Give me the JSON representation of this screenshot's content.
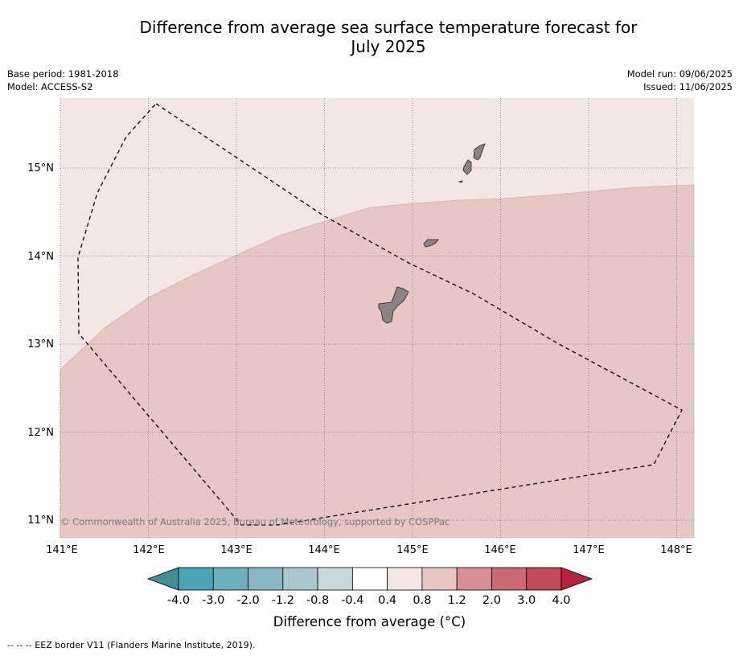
{
  "title": "Difference from average sea surface temperature forecast for",
  "title_line2": "July 2025",
  "meta": {
    "base_period": "Base period: 1981-2018",
    "model": "Model: ACCESS-S2",
    "model_run": "Model run: 09/06/2025",
    "issued": "Issued: 11/06/2025"
  },
  "map": {
    "lon_ticks": [
      "141°E",
      "142°E",
      "143°E",
      "144°E",
      "145°E",
      "146°E",
      "147°E",
      "148°E"
    ],
    "lat_ticks": [
      "15°N",
      "14°N",
      "13°N",
      "12°N",
      "11°N"
    ],
    "copyright": "© Commonwealth of Australia 2025, Bureau of Meteorology, supported by COSPPac",
    "colors": {
      "band_04_08": "#f4e6e5",
      "band_08_12": "#e7c7c3",
      "land": "#8c8483"
    }
  },
  "colorbar": {
    "label": "Difference from average (°C)",
    "tick_labels": [
      "-4.0",
      "-3.0",
      "-2.0",
      "-1.2",
      "-0.8",
      "-0.4",
      "0.4",
      "0.8",
      "1.2",
      "2.0",
      "3.0",
      "4.0"
    ],
    "colors": [
      "#4ba5b5",
      "#6eafbd",
      "#8ab7c2",
      "#a9c8cd",
      "#c9d8dc",
      "#ffffff",
      "#f5e6e6",
      "#e7c5c2",
      "#d98e95",
      "#cc6a74",
      "#c04a5a"
    ],
    "extend_low": "#3f8e98",
    "extend_high": "#b52341"
  },
  "footer": "--  --  -- EEZ border V11 (Flanders Marine Institute, 2019)."
}
